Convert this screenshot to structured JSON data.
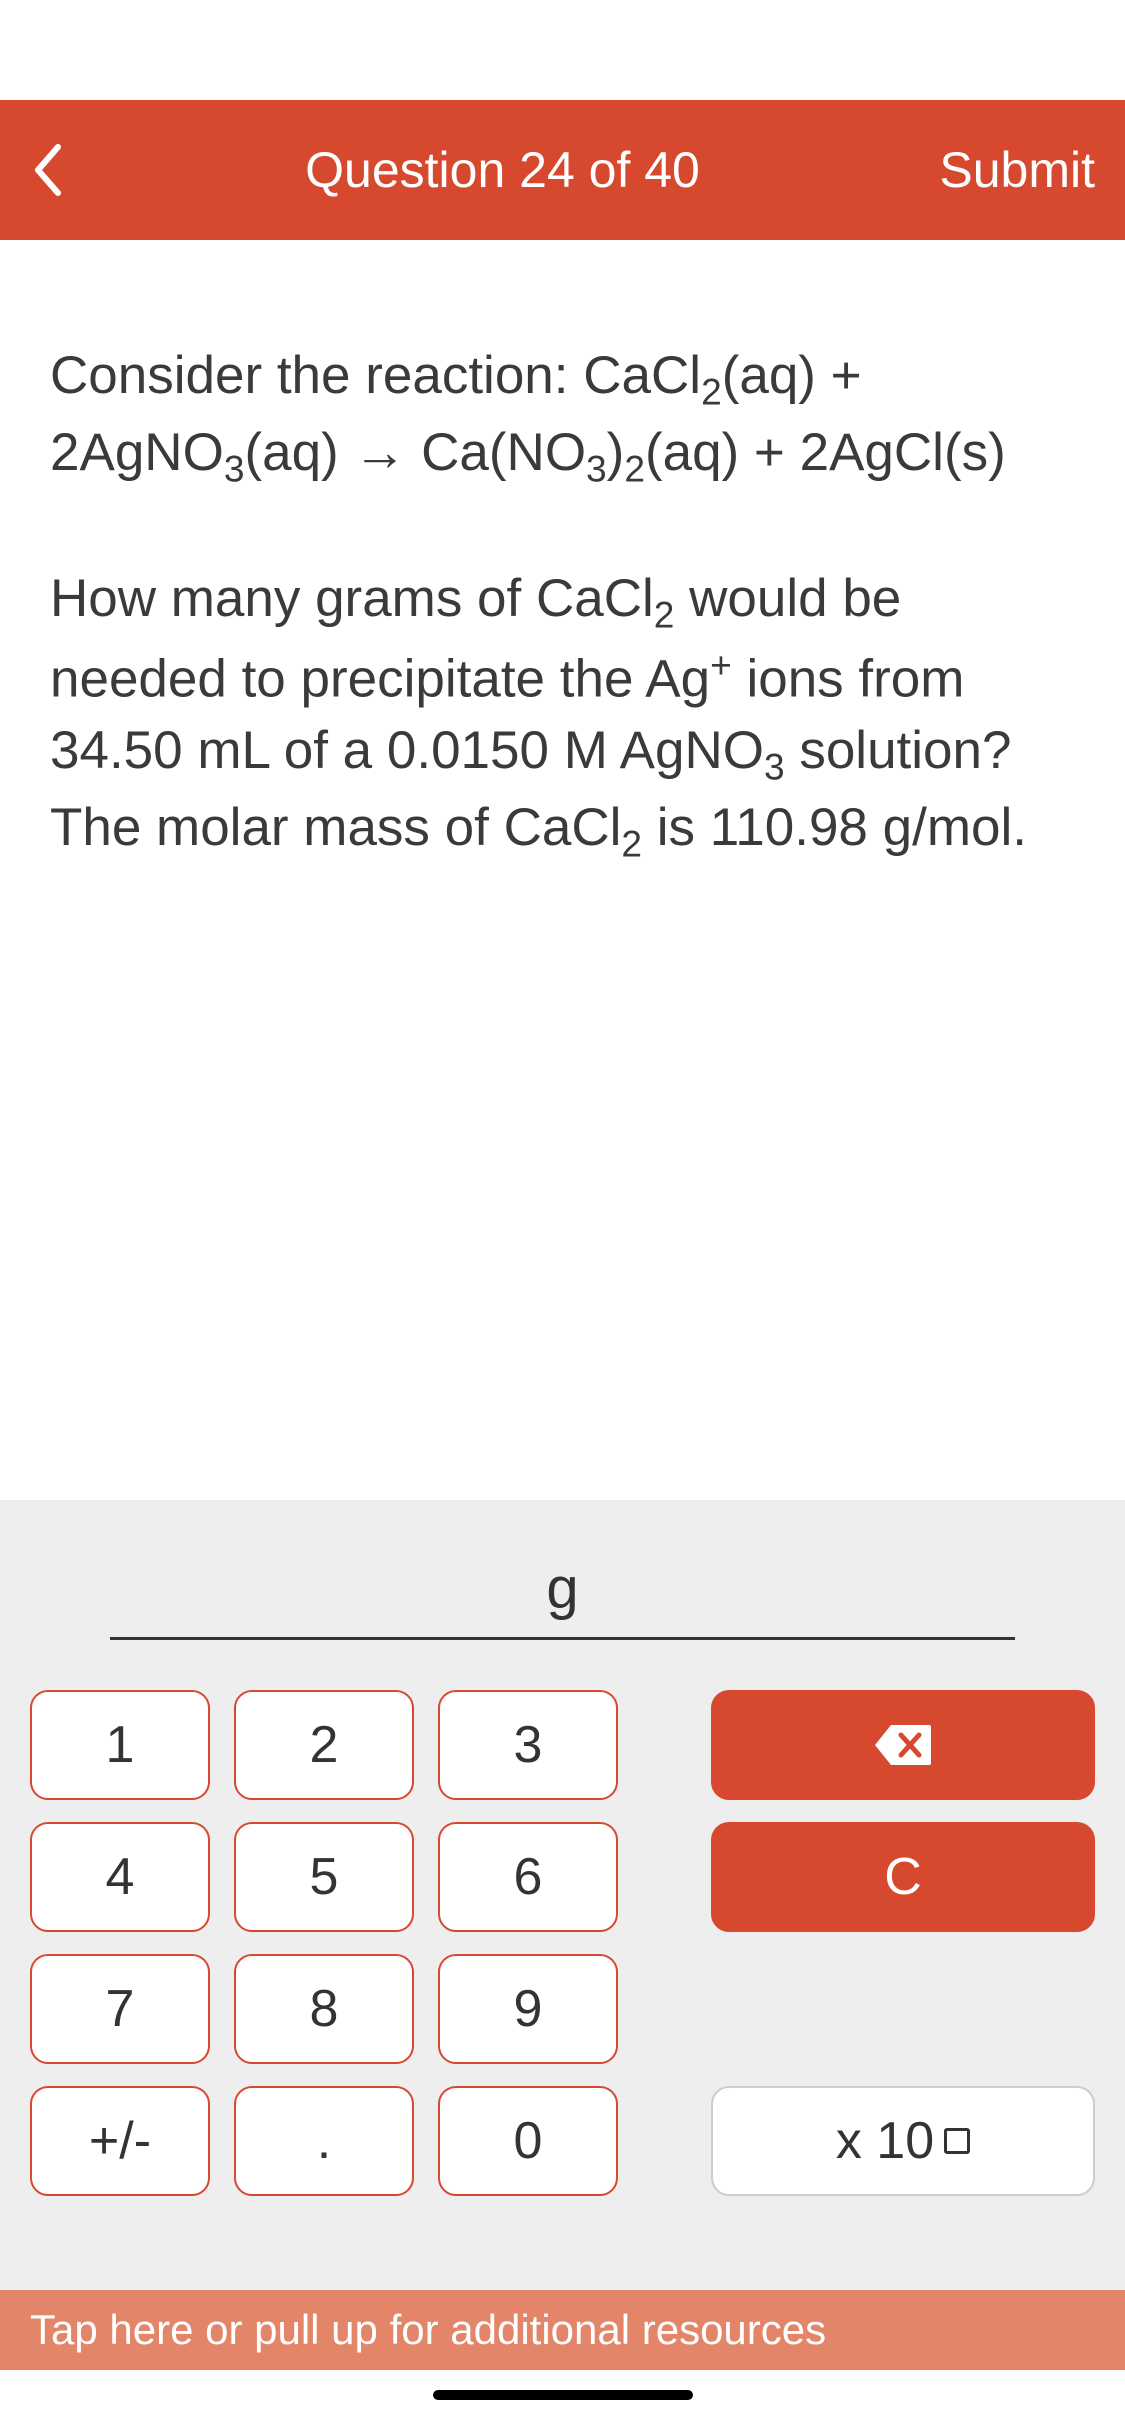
{
  "colors": {
    "header_bg": "#d6492f",
    "footer_bg": "#e38569",
    "panel_bg": "#eeeeee",
    "key_bg": "#ffffff",
    "key_border": "#d6492f",
    "text": "#3a3a3a"
  },
  "header": {
    "title": "Question 24 of 40",
    "submit": "Submit"
  },
  "question": {
    "reaction_prefix": "Consider the reaction: ",
    "reaction_formula_html": "CaCl<sub>2</sub>(aq) + 2AgNO<sub>3</sub>(aq) → Ca(NO<sub>3</sub>)<sub>2</sub>(aq) + 2AgCl(s)",
    "prompt_html": "How many grams of CaCl<sub>2</sub> would be needed to precipitate the Ag<sup>+</sup> ions from 34.50 mL of a 0.0150 M AgNO<sub>3</sub> solution?  The molar mass of CaCl<sub>2</sub> is 110.98 g/mol."
  },
  "answer": {
    "value": "",
    "unit": "g"
  },
  "keypad": {
    "k1": "1",
    "k2": "2",
    "k3": "3",
    "k4": "4",
    "k5": "5",
    "k6": "6",
    "k7": "7",
    "k8": "8",
    "k9": "9",
    "k0": "0",
    "sign": "+/-",
    "dot": ".",
    "clear": "C",
    "exp_prefix": "x 10"
  },
  "footer": {
    "text": "Tap here or pull up for additional resources"
  }
}
